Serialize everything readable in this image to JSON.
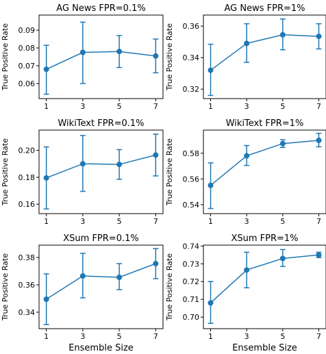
{
  "colors": {
    "series": "#1f77b4"
  },
  "chart_data": [
    {
      "type": "line",
      "title": "AG News FPR=0.1%",
      "xlabel": "",
      "ylabel": "True Positive Rate",
      "x": [
        1,
        3,
        5,
        7
      ],
      "xticks": [
        "1",
        "3",
        "5",
        "7"
      ],
      "ylim": [
        0.0515,
        0.0985
      ],
      "yticks": [
        "0.06",
        "0.07",
        "0.08",
        "0.09"
      ],
      "series": [
        {
          "values": [
            0.068,
            0.0775,
            0.078,
            0.0755
          ],
          "err_low": [
            0.054,
            0.06,
            0.069,
            0.066
          ],
          "err_high": [
            0.0815,
            0.0945,
            0.087,
            0.085
          ]
        }
      ]
    },
    {
      "type": "line",
      "title": "AG News FPR=1%",
      "xlabel": "",
      "ylabel": "True Positive Rate",
      "x": [
        1,
        3,
        5,
        7
      ],
      "xticks": [
        "1",
        "3",
        "5",
        "7"
      ],
      "ylim": [
        0.314,
        0.367
      ],
      "yticks": [
        "0.32",
        "0.34",
        "0.36"
      ],
      "series": [
        {
          "values": [
            0.332,
            0.349,
            0.3545,
            0.3535
          ],
          "err_low": [
            0.316,
            0.337,
            0.345,
            0.3455
          ],
          "err_high": [
            0.3485,
            0.3615,
            0.3645,
            0.3615
          ]
        }
      ]
    },
    {
      "type": "line",
      "title": "WikiText FPR=0.1%",
      "xlabel": "",
      "ylabel": "True Positive Rate",
      "x": [
        1,
        3,
        5,
        7
      ],
      "xticks": [
        "1",
        "3",
        "5",
        "7"
      ],
      "ylim": [
        0.153,
        0.215
      ],
      "yticks": [
        "0.16",
        "0.18",
        "0.20"
      ],
      "series": [
        {
          "values": [
            0.1795,
            0.19,
            0.1895,
            0.1965
          ],
          "err_low": [
            0.1565,
            0.1695,
            0.1785,
            0.181
          ],
          "err_high": [
            0.2025,
            0.211,
            0.2005,
            0.212
          ]
        }
      ]
    },
    {
      "type": "line",
      "title": "WikiText FPR=1%",
      "xlabel": "",
      "ylabel": "True Positive Rate",
      "x": [
        1,
        3,
        5,
        7
      ],
      "xticks": [
        "1",
        "3",
        "5",
        "7"
      ],
      "ylim": [
        0.533,
        0.598
      ],
      "yticks": [
        "0.54",
        "0.56",
        "0.58"
      ],
      "series": [
        {
          "values": [
            0.555,
            0.578,
            0.5875,
            0.59
          ],
          "err_low": [
            0.537,
            0.5705,
            0.5845,
            0.585
          ],
          "err_high": [
            0.5725,
            0.586,
            0.5905,
            0.5955
          ]
        }
      ]
    },
    {
      "type": "line",
      "title": "XSum FPR=0.1%",
      "xlabel": "Ensemble Size",
      "ylabel": "True Positive Rate",
      "x": [
        1,
        3,
        5,
        7
      ],
      "xticks": [
        "1",
        "3",
        "5",
        "7"
      ],
      "ylim": [
        0.328,
        0.389
      ],
      "yticks": [
        "0.34",
        "0.36",
        "0.38"
      ],
      "series": [
        {
          "values": [
            0.3495,
            0.3665,
            0.3655,
            0.3755
          ],
          "err_low": [
            0.331,
            0.3505,
            0.3565,
            0.3645
          ],
          "err_high": [
            0.368,
            0.383,
            0.3755,
            0.3865
          ]
        }
      ]
    },
    {
      "type": "line",
      "title": "XSum FPR=1%",
      "xlabel": "Ensemble Size",
      "ylabel": "True Positive Rate",
      "x": [
        1,
        3,
        5,
        7
      ],
      "xticks": [
        "1",
        "3",
        "5",
        "7"
      ],
      "ylim": [
        0.6935,
        0.7405
      ],
      "yticks": [
        "0.70",
        "0.71",
        "0.72",
        "0.73",
        "0.74"
      ],
      "series": [
        {
          "values": [
            0.708,
            0.7265,
            0.733,
            0.735
          ],
          "err_low": [
            0.6965,
            0.7165,
            0.7285,
            0.7335
          ],
          "err_high": [
            0.72,
            0.7365,
            0.738,
            0.7365
          ]
        }
      ]
    }
  ]
}
